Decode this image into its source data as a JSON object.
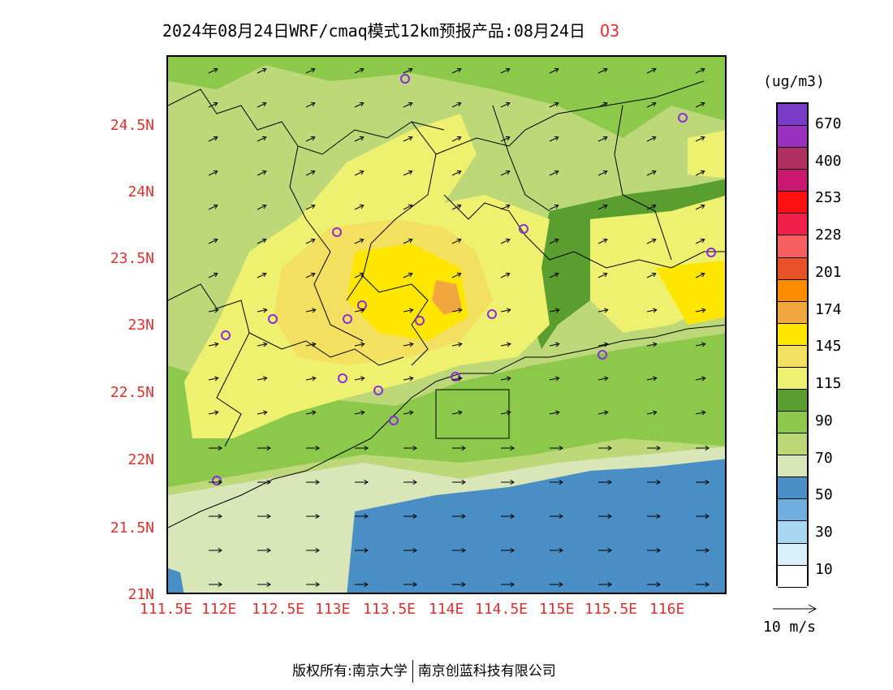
{
  "title": "2024年08月24日WRF/cmaq模式12km预报产品:08月24日",
  "species": "O3",
  "unit": "(ug/m3)",
  "lat_labels": [
    "24.5N",
    "24N",
    "23.5N",
    "23N",
    "22.5N",
    "22N",
    "21.5N",
    "21N"
  ],
  "lon_labels": [
    "111.5E",
    "112E",
    "112.5E",
    "113E",
    "113.5E",
    "114E",
    "114.5E",
    "115E",
    "115.5E",
    "116E"
  ],
  "legend_labels": [
    "670",
    "400",
    "253",
    "228",
    "201",
    "174",
    "145",
    "115",
    "90",
    "70",
    "50",
    "30",
    "10"
  ],
  "legend_colors": [
    "#7a3cc8",
    "#9a2fc0",
    "#b03060",
    "#c81870",
    "#ff1010",
    "#f0204a",
    "#f86060",
    "#e85028",
    "#ff8c00",
    "#f2a640",
    "#ffe600",
    "#f4e060",
    "#eef070",
    "#5a9e30",
    "#8cc84a",
    "#bcd878",
    "#d8e6b8",
    "#4a8ec6",
    "#70aee0",
    "#a8d8f4",
    "#d8eef8",
    "#ffffff"
  ],
  "wind_reference": "10 m/s",
  "footer": {
    "left": "版权所有:南京大学",
    "right": "南京创蓝科技有限公司"
  }
}
